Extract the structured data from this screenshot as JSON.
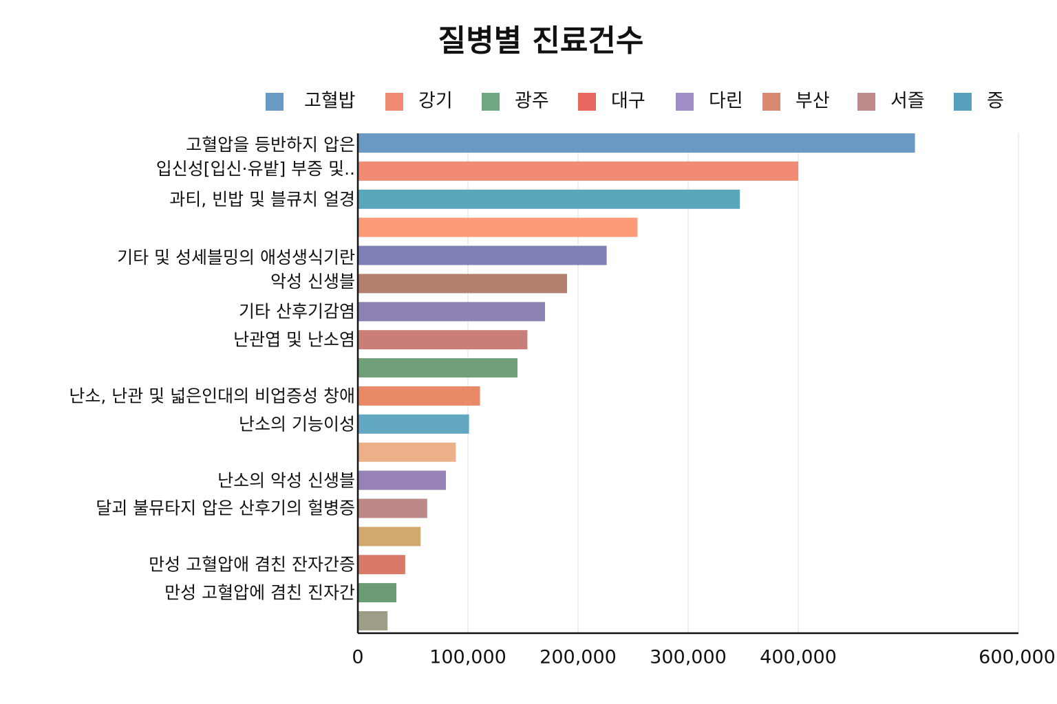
{
  "chart_data": {
    "type": "bar",
    "orientation": "horizontal",
    "title": "질병별 진료건수",
    "legend": [
      {
        "name": "고혈밥",
        "color": "#6a9ac4"
      },
      {
        "name": "강기",
        "color": "#f08a72"
      },
      {
        "name": "광주",
        "color": "#6fa883"
      },
      {
        "name": "대구",
        "color": "#e86560"
      },
      {
        "name": "다린",
        "color": "#a08cc6"
      },
      {
        "name": "부산",
        "color": "#d98872"
      },
      {
        "name": "서즐",
        "color": "#bc8a8a"
      },
      {
        "name": "증",
        "color": "#57a0bc"
      }
    ],
    "categories": [
      "고혈압을 등반하지 압은\n입신성[입신·유밭] 부증 및..",
      null,
      "과티, 빈밥 및 블큐치 얼경",
      null,
      "기타 및 성세블밍의 애성생식기란\n악성 신생블",
      null,
      "기타 산후기감염",
      "난관엽 및 난소염",
      null,
      "난소, 난관 및 넓은인대의 비업증성 창애",
      "난소의 기능이성",
      null,
      "난소의 악성 신생블",
      "달괴 불뮤타지 압은 산후기의 헐병증",
      null,
      "만성 고혈압애 겸친 잔자간증",
      "만성 고혈압에 겸친 진자간",
      null
    ],
    "values": [
      506000,
      400000,
      347000,
      254000,
      226000,
      190000,
      170000,
      154000,
      145000,
      111000,
      101000,
      89000,
      80000,
      63000,
      57000,
      43000,
      35000,
      27000
    ],
    "colors": [
      "#6a9ac4",
      "#f28b74",
      "#5aa6ba",
      "#fd9a78",
      "#7f80b6",
      "#b3806f",
      "#8e82b3",
      "#c97e78",
      "#6fa07a",
      "#e88a68",
      "#62a8c2",
      "#ebb088",
      "#9782b5",
      "#bc8888",
      "#d1a870",
      "#d97a68",
      "#6c9c74",
      "#9e9e88"
    ],
    "xlim": [
      0,
      600000
    ],
    "xticks": [
      0,
      {
        "value": 100000,
        "label": "100,000"
      },
      {
        "value": 200000,
        "label": "200,000"
      },
      {
        "value": 300000,
        "label": "300,000"
      },
      {
        "value": 400000,
        "label": "400,000"
      },
      {
        "value": 600000,
        "label": "600,000"
      }
    ],
    "grid": true
  }
}
